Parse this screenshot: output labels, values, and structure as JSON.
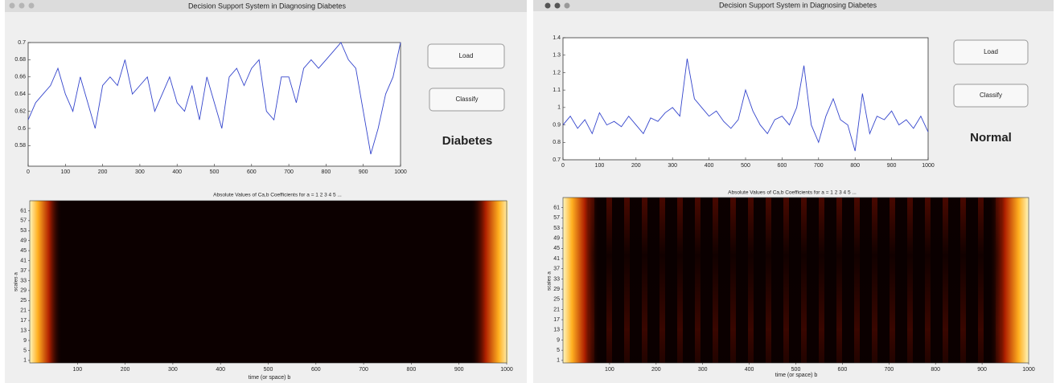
{
  "windows": [
    {
      "title": "Decision Support System in Diagnosing Diabetes",
      "buttons": [
        "Load",
        "Classify"
      ],
      "result": "Diabetes",
      "result_color": "#d4261c",
      "chart_data": {
        "type": "line",
        "color": "#3445cc",
        "x": [
          0,
          20,
          40,
          60,
          80,
          100,
          120,
          140,
          160,
          180,
          200,
          220,
          240,
          260,
          280,
          300,
          320,
          340,
          360,
          380,
          400,
          420,
          440,
          460,
          480,
          500,
          520,
          540,
          560,
          580,
          600,
          620,
          640,
          660,
          680,
          700,
          720,
          740,
          760,
          780,
          800,
          820,
          840,
          860,
          880,
          900,
          920,
          940,
          960,
          980,
          1000
        ],
        "values": [
          0.61,
          0.63,
          0.64,
          0.65,
          0.67,
          0.64,
          0.62,
          0.66,
          0.63,
          0.6,
          0.65,
          0.66,
          0.65,
          0.68,
          0.64,
          0.65,
          0.66,
          0.62,
          0.64,
          0.66,
          0.63,
          0.62,
          0.65,
          0.61,
          0.66,
          0.63,
          0.6,
          0.66,
          0.67,
          0.65,
          0.67,
          0.68,
          0.62,
          0.61,
          0.66,
          0.66,
          0.63,
          0.67,
          0.68,
          0.67,
          0.68,
          0.69,
          0.7,
          0.68,
          0.67,
          0.62,
          0.57,
          0.6,
          0.64,
          0.66,
          0.7
        ],
        "xlim": [
          0,
          1000
        ],
        "xticks": [
          0,
          100,
          200,
          300,
          400,
          500,
          600,
          700,
          800,
          900,
          1000
        ],
        "ylim": [
          0.556,
          0.7
        ],
        "yticks": [
          0.58,
          0.6,
          0.62,
          0.64,
          0.66,
          0.68,
          0.7
        ]
      },
      "scalogram": {
        "type": "heatmap",
        "title": "Absolute Values of Ca,b Coefficients for a = 1 2 3 4 5 ...",
        "xlabel": "time (or space) b",
        "ylabel": "scales a",
        "xlim": [
          0,
          1000
        ],
        "xticks": [
          100,
          200,
          300,
          400,
          500,
          600,
          700,
          800,
          900,
          1000
        ],
        "ylim": [
          0,
          65
        ],
        "yticks": [
          1,
          5,
          9,
          13,
          17,
          21,
          25,
          29,
          33,
          37,
          41,
          45,
          49,
          53,
          57,
          61
        ]
      }
    },
    {
      "title": "Decision Support System in Diagnosing Diabetes",
      "buttons": [
        "Load",
        "Classify"
      ],
      "result": "Normal",
      "result_color": "#2f49e0",
      "chart_data": {
        "type": "line",
        "color": "#3445cc",
        "x": [
          0,
          20,
          40,
          60,
          80,
          100,
          120,
          140,
          160,
          180,
          200,
          220,
          240,
          260,
          280,
          300,
          320,
          340,
          360,
          380,
          400,
          420,
          440,
          460,
          480,
          500,
          520,
          540,
          560,
          580,
          600,
          620,
          640,
          660,
          680,
          700,
          720,
          740,
          760,
          780,
          800,
          820,
          840,
          860,
          880,
          900,
          920,
          940,
          960,
          980,
          1000
        ],
        "values": [
          0.9,
          0.95,
          0.88,
          0.93,
          0.85,
          0.97,
          0.9,
          0.92,
          0.89,
          0.95,
          0.9,
          0.85,
          0.94,
          0.92,
          0.97,
          1.0,
          0.95,
          1.28,
          1.05,
          1.0,
          0.95,
          0.98,
          0.92,
          0.88,
          0.93,
          1.1,
          0.98,
          0.9,
          0.85,
          0.93,
          0.95,
          0.9,
          1.0,
          1.24,
          0.9,
          0.8,
          0.95,
          1.05,
          0.93,
          0.9,
          0.75,
          1.08,
          0.85,
          0.95,
          0.93,
          0.98,
          0.9,
          0.93,
          0.88,
          0.95,
          0.86
        ],
        "xlim": [
          0,
          1000
        ],
        "xticks": [
          0,
          100,
          200,
          300,
          400,
          500,
          600,
          700,
          800,
          900,
          1000
        ],
        "ylim": [
          0.7,
          1.4
        ],
        "yticks": [
          0.7,
          0.8,
          0.9,
          1,
          1.1,
          1.2,
          1.3,
          1.4
        ]
      },
      "scalogram": {
        "type": "heatmap",
        "title": "Absolute Values of Ca,b Coefficients for a = 1 2 3 4 5 ...",
        "xlabel": "time (or space) b",
        "ylabel": "scales a",
        "xlim": [
          0,
          1000
        ],
        "xticks": [
          100,
          200,
          300,
          400,
          500,
          600,
          700,
          800,
          900,
          1000
        ],
        "ylim": [
          0,
          65
        ],
        "yticks": [
          1,
          5,
          9,
          13,
          17,
          21,
          25,
          29,
          33,
          37,
          41,
          45,
          49,
          53,
          57,
          61
        ]
      }
    }
  ]
}
